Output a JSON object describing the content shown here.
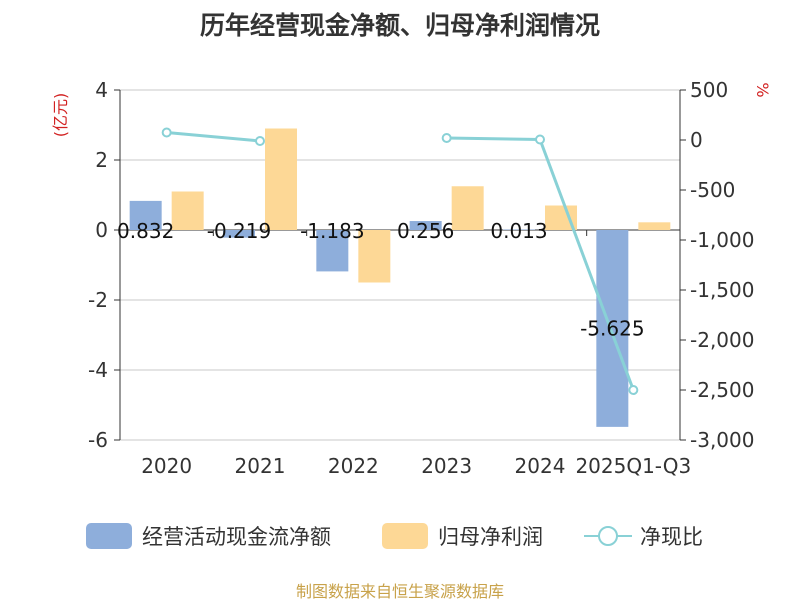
{
  "chart_data": {
    "type": "bar",
    "title": "历年经营现金净额、归母净利润情况",
    "categories": [
      "2020",
      "2021",
      "2022",
      "2023",
      "2024",
      "2025Q1-Q3"
    ],
    "left_axis": {
      "label": "(亿元)",
      "range": [
        -6,
        4
      ],
      "ticks": [
        4,
        2,
        0,
        -2,
        -4,
        -6
      ]
    },
    "right_axis": {
      "label": "%",
      "range": [
        -3000,
        500
      ],
      "ticks": [
        "500",
        "0",
        "-500",
        "-1,000",
        "-1,500",
        "-2,000",
        "-2,500",
        "-3,000"
      ]
    },
    "series": [
      {
        "name": "经营活动现金流净额",
        "kind": "bar",
        "axis": "left",
        "color": "#8eaedb",
        "values": [
          0.832,
          -0.219,
          -1.183,
          0.256,
          0.013,
          -5.625
        ],
        "data_labels": [
          "0.832",
          "-0.219",
          "-1.183",
          "0.256",
          "0.013",
          "-5.625"
        ]
      },
      {
        "name": "归母净利润",
        "kind": "bar",
        "axis": "left",
        "color": "#fdd896",
        "values": [
          1.1,
          2.9,
          -1.5,
          1.25,
          0.7,
          0.22
        ]
      },
      {
        "name": "净现比",
        "kind": "line",
        "axis": "right",
        "color": "#89d1d6",
        "values": [
          75,
          -10,
          null,
          20,
          5,
          -2500
        ]
      }
    ],
    "grid": true,
    "legend_position": "bottom"
  },
  "source_note": "制图数据来自恒生聚源数据库"
}
